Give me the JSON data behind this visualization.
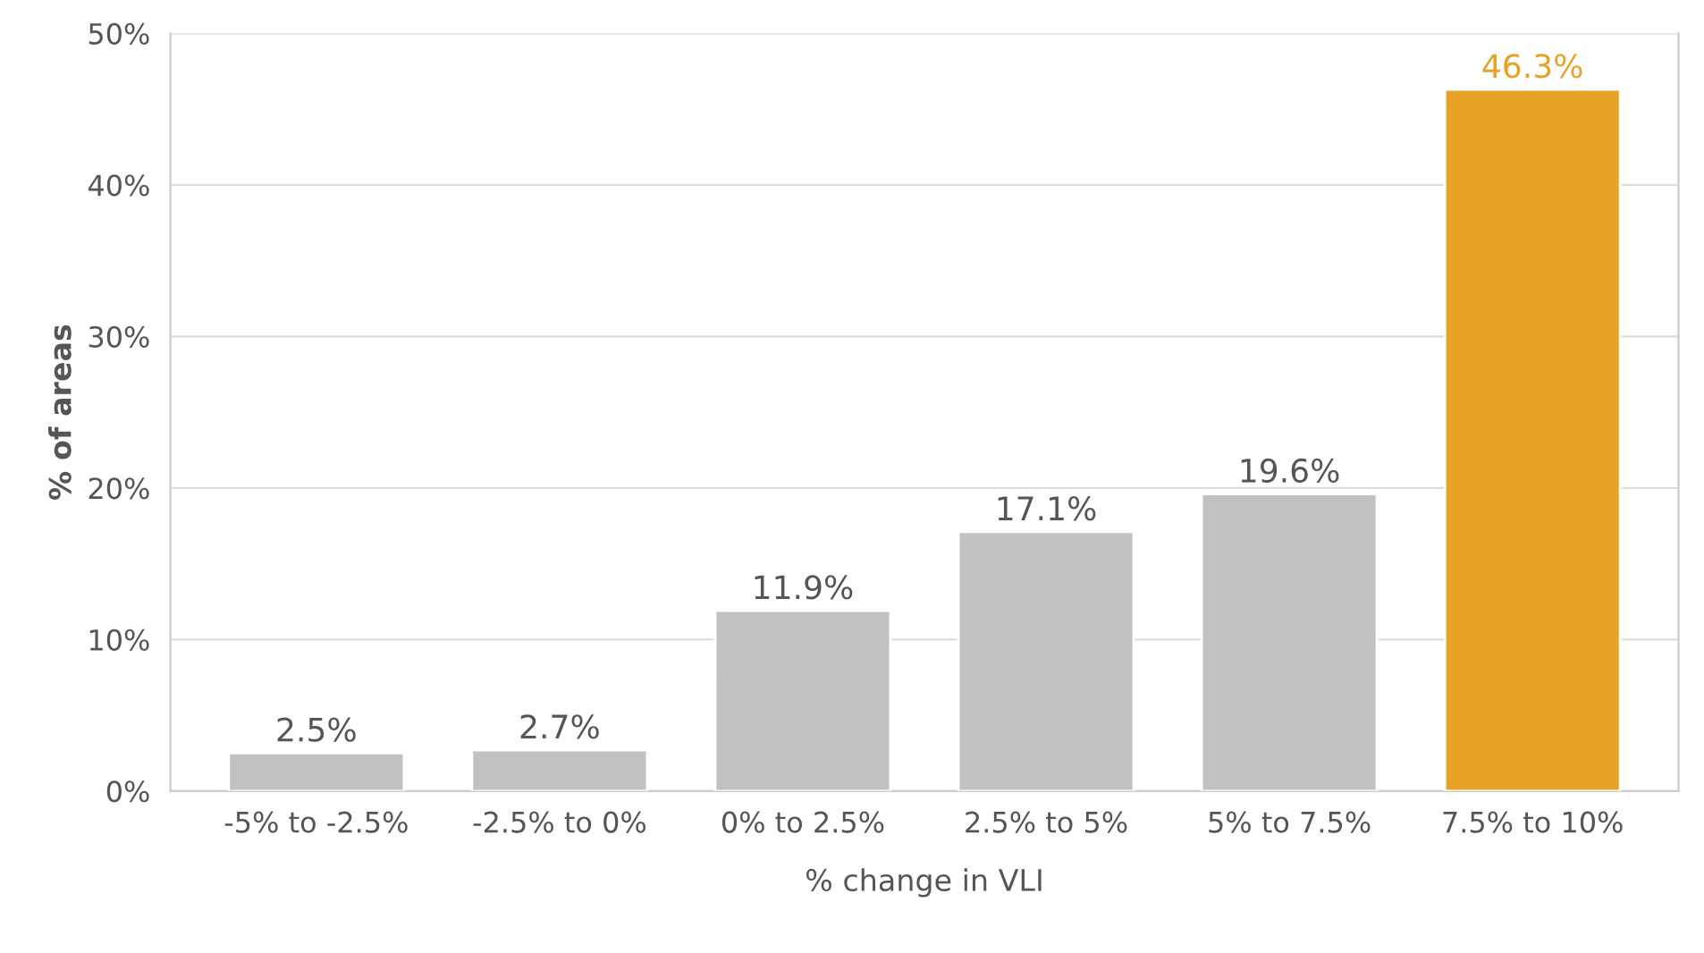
{
  "chart_data": {
    "type": "bar",
    "xlabel": "% change in VLI",
    "ylabel": "% of areas",
    "categories": [
      "-5% to -2.5%",
      "-2.5% to 0%",
      "0% to 2.5%",
      "2.5% to 5%",
      "5% to 7.5%",
      "7.5% to 10%"
    ],
    "values": [
      2.5,
      2.7,
      11.9,
      17.1,
      19.6,
      46.3
    ],
    "colors": [
      "#c1c1c3",
      "#c1c1c3",
      "#c1c1c3",
      "#c1c1c3",
      "#c1c1c3",
      "#e6a326"
    ],
    "value_labels": [
      "2.5%",
      "2.7%",
      "11.9%",
      "17.1%",
      "19.6%",
      "46.3%"
    ],
    "ylim": [
      0,
      50
    ],
    "yticks": [
      {
        "value": 0,
        "label": "0%"
      },
      {
        "value": 10,
        "label": "10%"
      },
      {
        "value": 20,
        "label": "20%"
      },
      {
        "value": 30,
        "label": "30%"
      },
      {
        "value": 40,
        "label": "40%"
      },
      {
        "value": 50,
        "label": "50%"
      }
    ],
    "grid": "y",
    "legend": false
  }
}
